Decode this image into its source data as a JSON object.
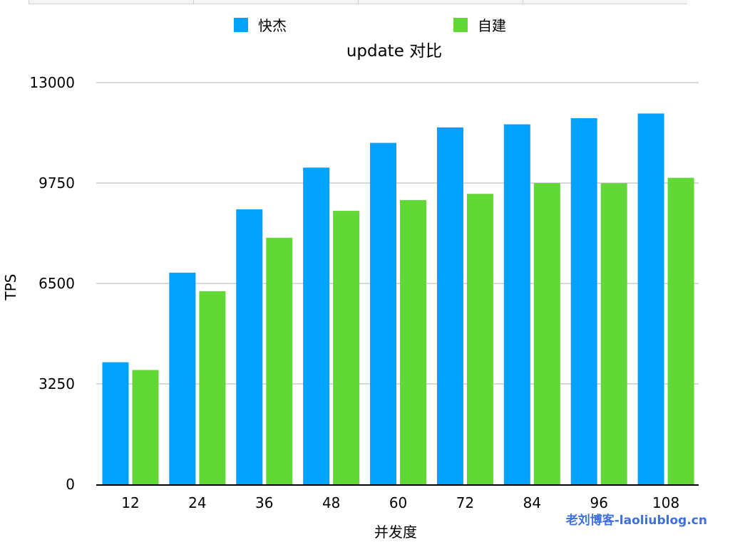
{
  "chart_data": {
    "type": "bar",
    "title": "update 对比",
    "xlabel": "并发度",
    "ylabel": "TPS",
    "categories": [
      "12",
      "24",
      "36",
      "48",
      "60",
      "72",
      "84",
      "96",
      "108"
    ],
    "series": [
      {
        "name": "快杰",
        "color": "#00a2ff",
        "values": [
          3950,
          6850,
          8900,
          10250,
          11050,
          11550,
          11650,
          11850,
          12000
        ]
      },
      {
        "name": "自建",
        "color": "#61d836",
        "values": [
          3700,
          6250,
          7980,
          8850,
          9200,
          9400,
          9750,
          9740,
          9920
        ]
      }
    ],
    "ylim": [
      0,
      13000
    ],
    "yticks": [
      "0",
      "3250",
      "6500",
      "9750",
      "13000"
    ],
    "grid": true,
    "legend_position": "top"
  },
  "watermark": "老刘博客-laoliublog.cn"
}
